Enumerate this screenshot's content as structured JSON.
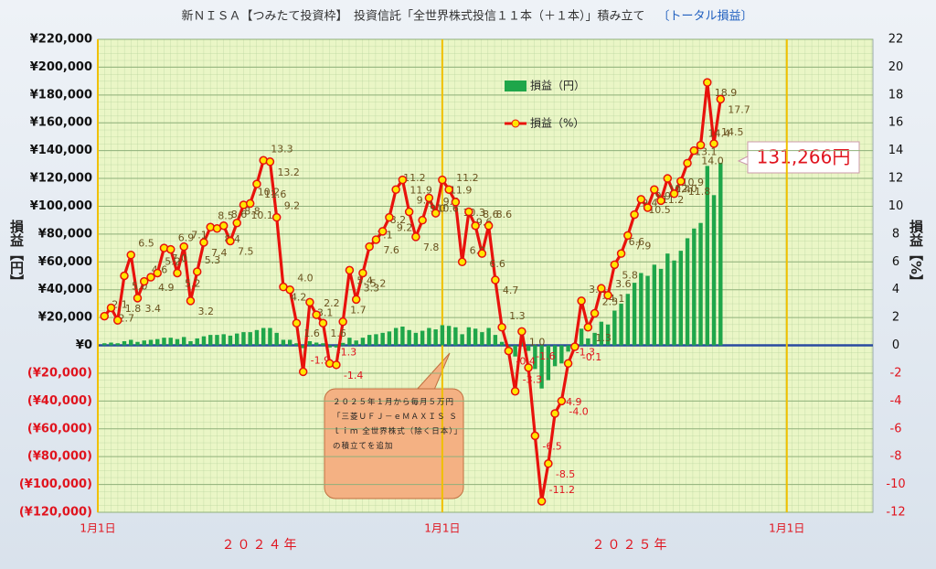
{
  "chart_data": {
    "type": "bar_line",
    "title": "新ＮＩＳＡ【つみたて投資枠】　投資信託「全世界株式投信１１本（＋１本）」積み立て",
    "subtitle": "〔トータル損益〕",
    "y_label": "損益【円】",
    "y2_label": "損益【%】",
    "year_labels": [
      "２０２４年",
      "２０２５年"
    ],
    "callout": "131,266円",
    "note": "２０２５年１月から毎月５万円「三菱ＵＦＪ－ｅＭＡＸＩＳ Ｓｌｉｍ 全世界株式（除く日本）」の積立てを追加",
    "grid": true,
    "legend": "top",
    "x": [
      1,
      2,
      3,
      4,
      5,
      6,
      7,
      8,
      9,
      10,
      11,
      12,
      13,
      14,
      15,
      16,
      17,
      18,
      19,
      20,
      21,
      22,
      23,
      24,
      25,
      26,
      27,
      28,
      29,
      30,
      31,
      32,
      33,
      34,
      35,
      36,
      37,
      38,
      39,
      40,
      41,
      42,
      43,
      44,
      45,
      46,
      47,
      48,
      49,
      50,
      51,
      52,
      53,
      54,
      55,
      56,
      57,
      58,
      59,
      60,
      61,
      62,
      63,
      64,
      65,
      66,
      67,
      68,
      69,
      70,
      71,
      72,
      73,
      74,
      75,
      76,
      77,
      78,
      79,
      80,
      81,
      82,
      83,
      84,
      85,
      86,
      87,
      88,
      89,
      90,
      91,
      92,
      93,
      94
    ],
    "xlim": [
      0,
      117
    ],
    "xticks": [
      {
        "value": 0,
        "label": "1月1日"
      },
      {
        "value": 52,
        "label": "1月1日"
      },
      {
        "value": 104,
        "label": "1月1日"
      }
    ],
    "ylim": [
      -120000,
      220000
    ],
    "yticks": [
      {
        "value": -120000,
        "label": "(¥120,000)"
      },
      {
        "value": -100000,
        "label": "(¥100,000)"
      },
      {
        "value": -80000,
        "label": "(¥80,000)"
      },
      {
        "value": -60000,
        "label": "(¥60,000)"
      },
      {
        "value": -40000,
        "label": "(¥40,000)"
      },
      {
        "value": -20000,
        "label": "(¥20,000)"
      },
      {
        "value": 0,
        "label": "¥0"
      },
      {
        "value": 20000,
        "label": "¥20,000"
      },
      {
        "value": 40000,
        "label": "¥40,000"
      },
      {
        "value": 60000,
        "label": "¥60,000"
      },
      {
        "value": 80000,
        "label": "¥80,000"
      },
      {
        "value": 100000,
        "label": "¥100,000"
      },
      {
        "value": 120000,
        "label": "¥120,000"
      },
      {
        "value": 140000,
        "label": "¥140,000"
      },
      {
        "value": 160000,
        "label": "¥160,000"
      },
      {
        "value": 180000,
        "label": "¥180,000"
      },
      {
        "value": 200000,
        "label": "¥200,000"
      },
      {
        "value": 220000,
        "label": "¥220,000"
      }
    ],
    "y2lim": [
      -12,
      22
    ],
    "y2ticks": [
      -12,
      -10,
      -8,
      -6,
      -4,
      -2,
      0,
      2,
      4,
      6,
      8,
      10,
      12,
      14,
      16,
      18,
      20,
      22
    ],
    "series": [
      {
        "name": "損益（円）",
        "color": "#1fa64a",
        "values": [
          1500,
          2000,
          1500,
          3000,
          4000,
          2500,
          3500,
          4000,
          4500,
          5500,
          5500,
          4500,
          6000,
          3000,
          5000,
          6500,
          7500,
          7500,
          8000,
          7000,
          8500,
          9500,
          9500,
          11000,
          12500,
          12500,
          9000,
          4000,
          4000,
          1500,
          -2000,
          3000,
          2000,
          1500,
          -1500,
          -1500,
          1800,
          5500,
          3500,
          5500,
          7500,
          8000,
          9000,
          10000,
          12500,
          13500,
          11000,
          9000,
          10500,
          12500,
          11500,
          14500,
          14000,
          13000,
          8000,
          13000,
          12000,
          9500,
          12500,
          7500,
          2500,
          -1000,
          -8000,
          2500,
          -4000,
          -17000,
          -31000,
          -25000,
          -15000,
          -13000,
          -4500,
          -400,
          12000,
          5000,
          9000,
          17000,
          15000,
          25000,
          30000,
          37000,
          45000,
          52000,
          50000,
          58000,
          55000,
          66000,
          61000,
          68000,
          77000,
          84000,
          88000,
          129000,
          108000,
          131266
        ]
      },
      {
        "name": "損益（%）",
        "color": "#e8120c",
        "axis": "y2",
        "values": [
          2.1,
          2.7,
          1.8,
          5.0,
          6.5,
          3.4,
          4.6,
          4.9,
          5.2,
          7.0,
          6.9,
          5.2,
          7.1,
          3.2,
          5.3,
          7.4,
          8.5,
          8.4,
          8.6,
          7.5,
          8.8,
          10.1,
          10.2,
          11.6,
          13.3,
          13.2,
          9.2,
          4.2,
          4.0,
          1.6,
          -1.9,
          3.1,
          2.2,
          1.6,
          -1.3,
          -1.4,
          1.7,
          5.4,
          3.3,
          5.2,
          7.1,
          7.6,
          8.2,
          9.2,
          11.2,
          11.9,
          9.6,
          7.8,
          9.0,
          10.6,
          9.5,
          11.9,
          11.2,
          10.3,
          6.0,
          9.6,
          8.6,
          6.6,
          8.6,
          4.7,
          1.3,
          -0.4,
          -3.3,
          1.0,
          -1.6,
          -6.5,
          -11.2,
          -8.5,
          -4.9,
          -4.0,
          -1.3,
          -0.1,
          3.2,
          1.3,
          2.3,
          4.1,
          3.6,
          5.8,
          6.6,
          7.9,
          9.4,
          10.5,
          9.9,
          11.2,
          10.4,
          12.0,
          10.9,
          11.8,
          13.1,
          14.0,
          14.4,
          18.9,
          14.5,
          17.7
        ],
        "value_labels": [
          "2.1",
          "2.7",
          "1.8",
          "5.0",
          "6.5",
          "3.4",
          "4.6",
          "4.9",
          "5.2",
          "7.0",
          "6.9",
          "5.2",
          "7.1",
          "3.2",
          "5.3",
          "7.4",
          "8.5",
          "8.4",
          "8.6",
          "7.5",
          "8.8",
          "10.1",
          "10.2",
          "11.6",
          "13.3",
          "13.2",
          "9.2",
          "4.2",
          "4.0",
          "1.6",
          "-1.9",
          "3.1",
          "2.2",
          "1.6",
          "-1.3",
          "-1.4",
          "1.7",
          "5.4",
          "3.3",
          "5.2",
          "7.1",
          "7.6",
          "8.2",
          "9.2",
          "11.2",
          "11.9",
          "9.6",
          "7.8",
          "9.0",
          "10.6",
          "9.5",
          "11.9",
          "11.2",
          "10.3",
          "6.0",
          "9.6",
          "8.6",
          "6.6",
          "8.6",
          "4.7",
          "1.3",
          "-0.4",
          "-3.3",
          "1.0",
          "-1.6",
          "-6.5",
          "-11.2",
          "-8.5",
          "-4.9",
          "-4.0",
          "-1.3",
          "-0.1",
          "3.2",
          "1.3",
          "2.3",
          "4.1",
          "3.6",
          "5.8",
          "6.6",
          "7.9",
          "9.4",
          "10.5",
          "9.9",
          "11.2",
          "10.4",
          "12.0",
          "10.9",
          "11.8",
          "13.1",
          "14.0",
          "14.4",
          "18.9",
          "14.5",
          "17.7"
        ]
      }
    ]
  }
}
